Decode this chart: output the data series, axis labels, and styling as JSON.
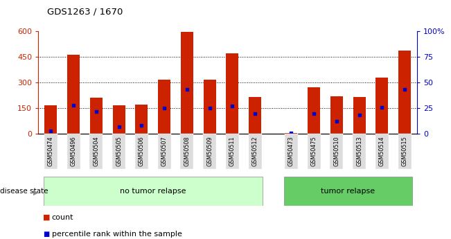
{
  "title": "GDS1263 / 1670",
  "categories": [
    "GSM50474",
    "GSM50496",
    "GSM50504",
    "GSM50505",
    "GSM50506",
    "GSM50507",
    "GSM50508",
    "GSM50509",
    "GSM50511",
    "GSM50512",
    "GSM50473",
    "GSM50475",
    "GSM50510",
    "GSM50513",
    "GSM50514",
    "GSM50515"
  ],
  "count_values": [
    165,
    460,
    210,
    165,
    170,
    315,
    595,
    315,
    470,
    215,
    4,
    270,
    220,
    215,
    330,
    485
  ],
  "percentile_values": [
    3,
    28,
    22,
    7,
    8,
    25,
    43,
    25,
    27,
    20,
    1,
    20,
    12,
    18,
    26,
    43
  ],
  "group1_count": 10,
  "group1_label": "no tumor relapse",
  "group2_label": "tumor relapse",
  "group1_color": "#ccffcc",
  "group2_color": "#66cc66",
  "bar_color": "#cc2200",
  "blue_marker_color": "#0000cc",
  "ylim_left": [
    0,
    600
  ],
  "ylim_right": [
    0,
    100
  ],
  "yticks_left": [
    0,
    150,
    300,
    450,
    600
  ],
  "yticks_right": [
    0,
    25,
    50,
    75,
    100
  ],
  "grid_lines": [
    150,
    300,
    450
  ],
  "left_tick_color": "#cc2200",
  "right_tick_color": "#0000cc",
  "disease_state_label": "disease state",
  "legend_count_label": "count",
  "legend_percentile_label": "percentile rank within the sample",
  "background_color": "#ffffff"
}
